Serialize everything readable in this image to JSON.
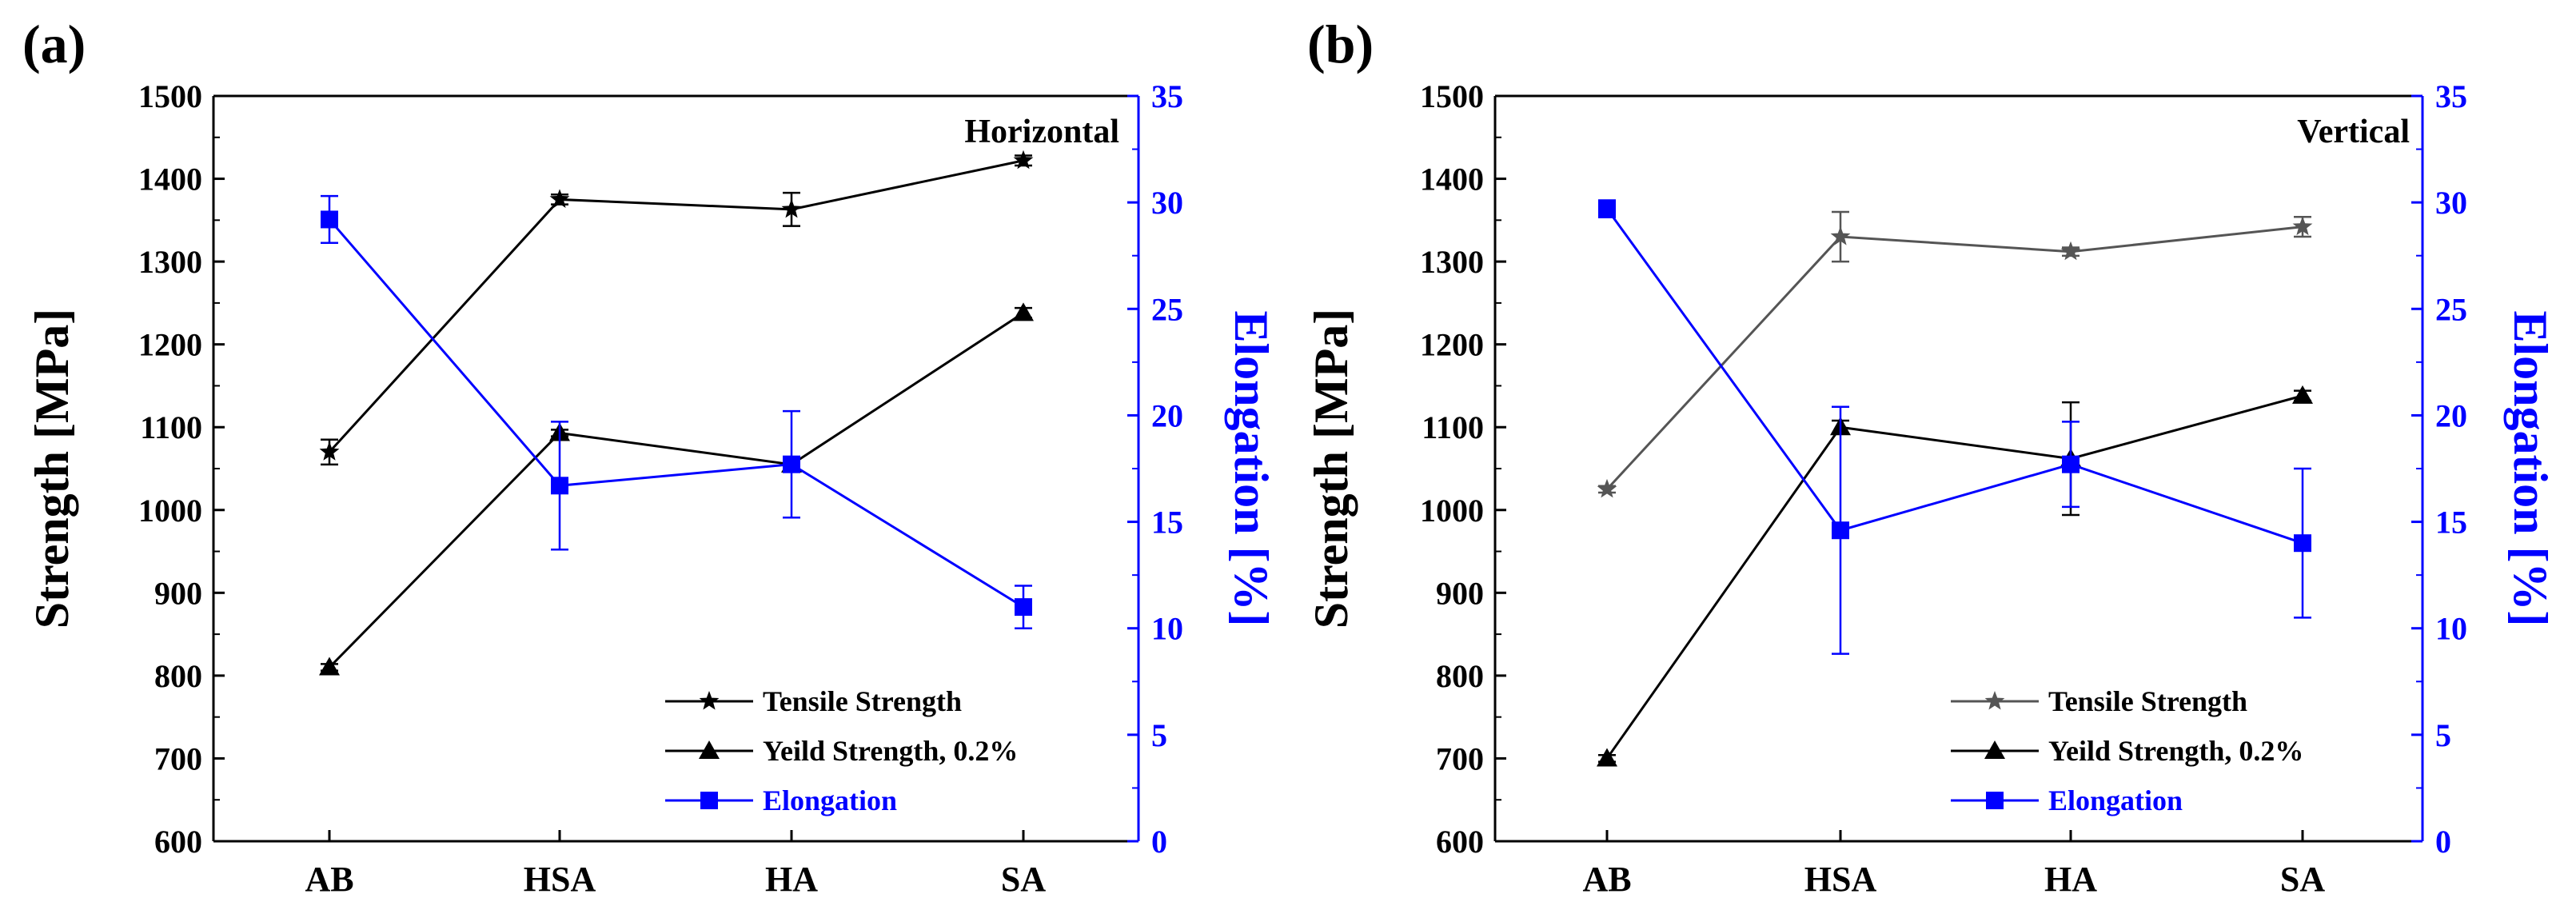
{
  "chart_data": [
    {
      "type": "line",
      "panel_label": "(a)",
      "annotation": "Horizontal",
      "categories": [
        "AB",
        "HSA",
        "HA",
        "SA"
      ],
      "ylabel": "Strength [MPa]",
      "y2label": "Elongation [%]",
      "ylim": [
        600,
        1500
      ],
      "y2lim": [
        0,
        35
      ],
      "yticks": [
        "600",
        "700",
        "800",
        "900",
        "1000",
        "1100",
        "1200",
        "1300",
        "1400",
        "1500"
      ],
      "y2ticks": [
        "0",
        "5",
        "10",
        "15",
        "20",
        "25",
        "30",
        "35"
      ],
      "legend_position": "bottom-right",
      "series": [
        {
          "name": "Tensile Strength",
          "axis": "left",
          "marker": "star",
          "color": "#000000",
          "values": [
            1070,
            1375,
            1363,
            1422
          ],
          "errors": [
            15,
            6,
            20,
            6
          ]
        },
        {
          "name": "Yeild Strength, 0.2%",
          "axis": "left",
          "marker": "triangle",
          "color": "#000000",
          "values": [
            810,
            1093,
            1055,
            1238
          ],
          "errors": [
            4,
            4,
            4,
            6
          ]
        },
        {
          "name": "Elongation",
          "axis": "right",
          "marker": "square",
          "color": "#0000ff",
          "values": [
            29.2,
            16.7,
            17.7,
            11.0
          ],
          "errors": [
            1.1,
            3.0,
            2.5,
            1.0
          ]
        }
      ]
    },
    {
      "type": "line",
      "panel_label": "(b)",
      "annotation": "Vertical",
      "categories": [
        "AB",
        "HSA",
        "HA",
        "SA"
      ],
      "ylabel": "Strength [MPa]",
      "y2label": "Elongation [%]",
      "ylim": [
        600,
        1500
      ],
      "y2lim": [
        0,
        35
      ],
      "yticks": [
        "600",
        "700",
        "800",
        "900",
        "1000",
        "1100",
        "1200",
        "1300",
        "1400",
        "1500"
      ],
      "y2ticks": [
        "0",
        "5",
        "10",
        "15",
        "20",
        "25",
        "30",
        "35"
      ],
      "legend_position": "bottom-right",
      "series": [
        {
          "name": "Tensile Strength",
          "axis": "left",
          "marker": "star",
          "color": "#555555",
          "values": [
            1025,
            1330,
            1312,
            1342
          ],
          "errors": [
            4,
            30,
            5,
            12
          ]
        },
        {
          "name": "Yeild Strength, 0.2%",
          "axis": "left",
          "marker": "triangle",
          "color": "#000000",
          "values": [
            700,
            1100,
            1062,
            1138
          ],
          "errors": [
            4,
            8,
            68,
            6
          ]
        },
        {
          "name": "Elongation",
          "axis": "right",
          "marker": "square",
          "color": "#0000ff",
          "values": [
            29.7,
            14.6,
            17.7,
            14.0
          ],
          "errors": [
            0.4,
            5.8,
            2.0,
            3.5
          ]
        }
      ]
    }
  ]
}
